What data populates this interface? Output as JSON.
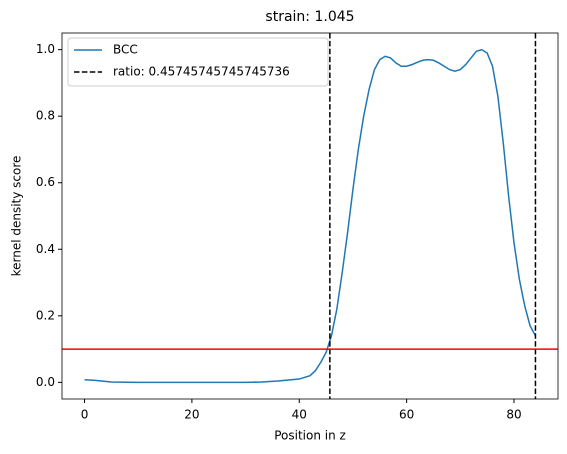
{
  "chart_data": {
    "type": "line",
    "title": "strain: 1.045",
    "x_label": "Position in z",
    "y_label": "kernel density score",
    "x": [
      0,
      2,
      5,
      10,
      20,
      30,
      33,
      36,
      40,
      42,
      43,
      44,
      45,
      46,
      47,
      48,
      49,
      50,
      51,
      52,
      53,
      54,
      55,
      56,
      57,
      58,
      59,
      60,
      61,
      62,
      63,
      64,
      65,
      66,
      67,
      68,
      69,
      70,
      71,
      72,
      73,
      74,
      75,
      76,
      77,
      78,
      79,
      80,
      81,
      82,
      83,
      84
    ],
    "series": [
      {
        "name": "BCC",
        "color": "#1f77b4",
        "values": [
          0.008,
          0.006,
          0.001,
          0,
          0,
          0,
          0.001,
          0.004,
          0.01,
          0.02,
          0.035,
          0.06,
          0.09,
          0.14,
          0.22,
          0.33,
          0.45,
          0.58,
          0.7,
          0.8,
          0.88,
          0.94,
          0.97,
          0.98,
          0.975,
          0.96,
          0.95,
          0.95,
          0.955,
          0.962,
          0.968,
          0.97,
          0.968,
          0.96,
          0.95,
          0.94,
          0.935,
          0.94,
          0.955,
          0.975,
          0.995,
          1.0,
          0.99,
          0.95,
          0.86,
          0.72,
          0.56,
          0.42,
          0.31,
          0.23,
          0.17,
          0.14
        ]
      }
    ],
    "vlines": {
      "name": "ratio: 0.45745745745745736",
      "color": "#000000",
      "x": [
        45.7,
        84
      ]
    },
    "hline": {
      "y": 0.1,
      "color": "#ff0000"
    },
    "xlim": [
      -4.2,
      88.2
    ],
    "ylim": [
      -0.05,
      1.05
    ],
    "xticks": [
      0,
      20,
      40,
      60,
      80
    ],
    "yticks": [
      {
        "value": 0,
        "label": "0.0"
      },
      {
        "value": 0.2,
        "label": "0.2"
      },
      {
        "value": 0.4,
        "label": "0.4"
      },
      {
        "value": 0.6,
        "label": "0.6"
      },
      {
        "value": 0.8,
        "label": "0.8"
      },
      {
        "value": 1,
        "label": "1.0"
      }
    ],
    "legend": "upper left"
  }
}
